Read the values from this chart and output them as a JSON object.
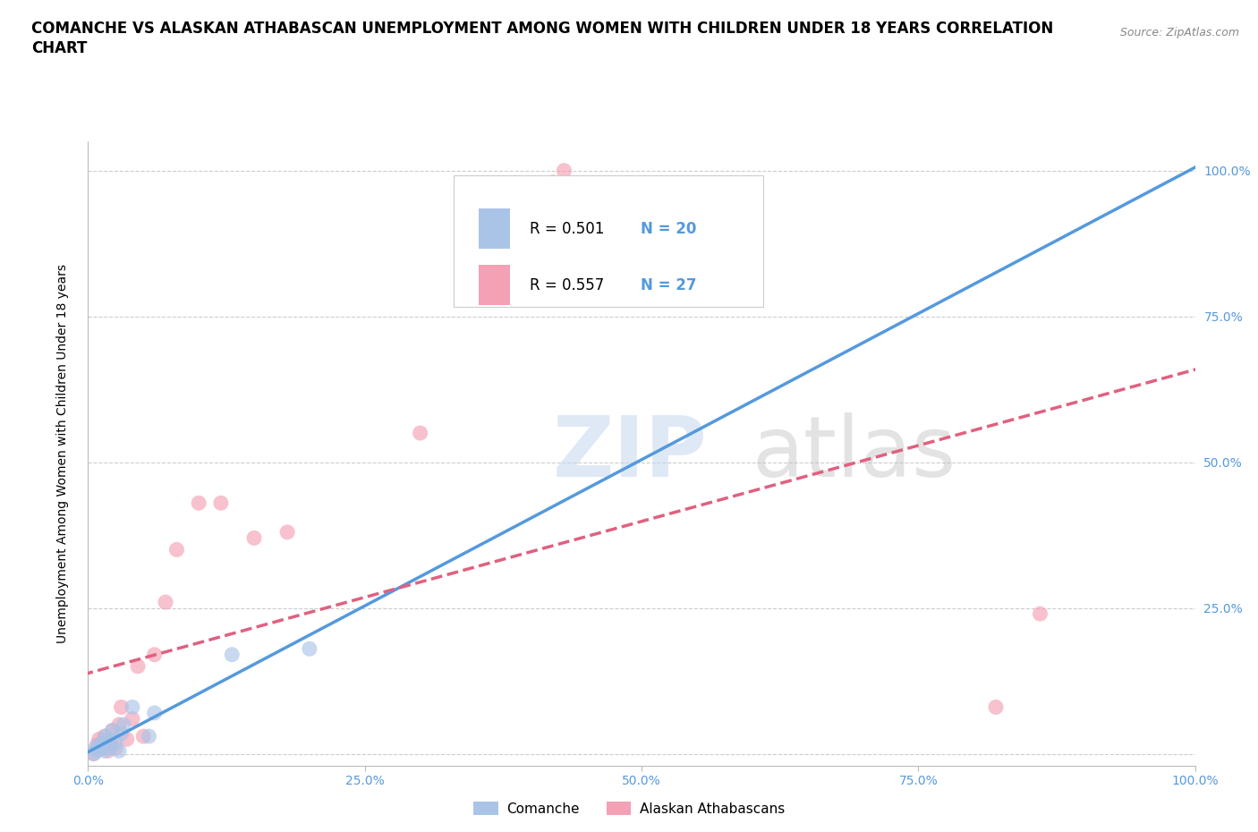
{
  "title_line1": "COMANCHE VS ALASKAN ATHABASCAN UNEMPLOYMENT AMONG WOMEN WITH CHILDREN UNDER 18 YEARS CORRELATION",
  "title_line2": "CHART",
  "source": "Source: ZipAtlas.com",
  "ylabel": "Unemployment Among Women with Children Under 18 years",
  "comanche_R": "0.501",
  "comanche_N": "20",
  "athabascan_R": "0.557",
  "athabascan_N": "27",
  "comanche_color": "#aac4e8",
  "athabascan_color": "#f4a0b5",
  "comanche_line_color": "#5599dd",
  "athabascan_line_color": "#e06080",
  "tick_color": "#5599dd",
  "xlim": [
    0.0,
    1.0
  ],
  "ylim": [
    -0.02,
    1.05
  ],
  "yticks": [
    0.0,
    0.25,
    0.5,
    0.75,
    1.0
  ],
  "ytick_labels": [
    "",
    "25.0%",
    "50.0%",
    "75.0%",
    "100.0%"
  ],
  "xticks": [
    0.0,
    0.25,
    0.5,
    0.75,
    1.0
  ],
  "xtick_labels": [
    "0.0%",
    "25.0%",
    "50.0%",
    "75.0%",
    "100.0%"
  ],
  "comanche_x": [
    0.005,
    0.007,
    0.008,
    0.01,
    0.012,
    0.014,
    0.015,
    0.016,
    0.018,
    0.02,
    0.022,
    0.025,
    0.028,
    0.03,
    0.032,
    0.04,
    0.055,
    0.06,
    0.13,
    0.2
  ],
  "comanche_y": [
    0.0,
    0.01,
    0.005,
    0.015,
    0.01,
    0.02,
    0.005,
    0.03,
    0.025,
    0.01,
    0.04,
    0.02,
    0.005,
    0.035,
    0.05,
    0.08,
    0.03,
    0.07,
    0.17,
    0.18
  ],
  "athabascan_x": [
    0.005,
    0.008,
    0.01,
    0.012,
    0.015,
    0.018,
    0.02,
    0.022,
    0.025,
    0.028,
    0.03,
    0.035,
    0.04,
    0.045,
    0.05,
    0.06,
    0.07,
    0.08,
    0.1,
    0.12,
    0.15,
    0.18,
    0.3,
    0.42,
    0.43,
    0.82,
    0.86
  ],
  "athabascan_y": [
    0.0,
    0.015,
    0.025,
    0.01,
    0.03,
    0.005,
    0.02,
    0.04,
    0.01,
    0.05,
    0.08,
    0.025,
    0.06,
    0.15,
    0.03,
    0.17,
    0.26,
    0.35,
    0.43,
    0.43,
    0.37,
    0.38,
    0.55,
    0.98,
    1.0,
    0.08,
    0.24
  ],
  "background_color": "#ffffff",
  "grid_color": "#cccccc",
  "title_fontsize": 12,
  "axis_label_fontsize": 10,
  "tick_fontsize": 10,
  "legend_fontsize": 12,
  "source_fontsize": 9,
  "marker_size": 150,
  "marker_alpha": 0.65
}
